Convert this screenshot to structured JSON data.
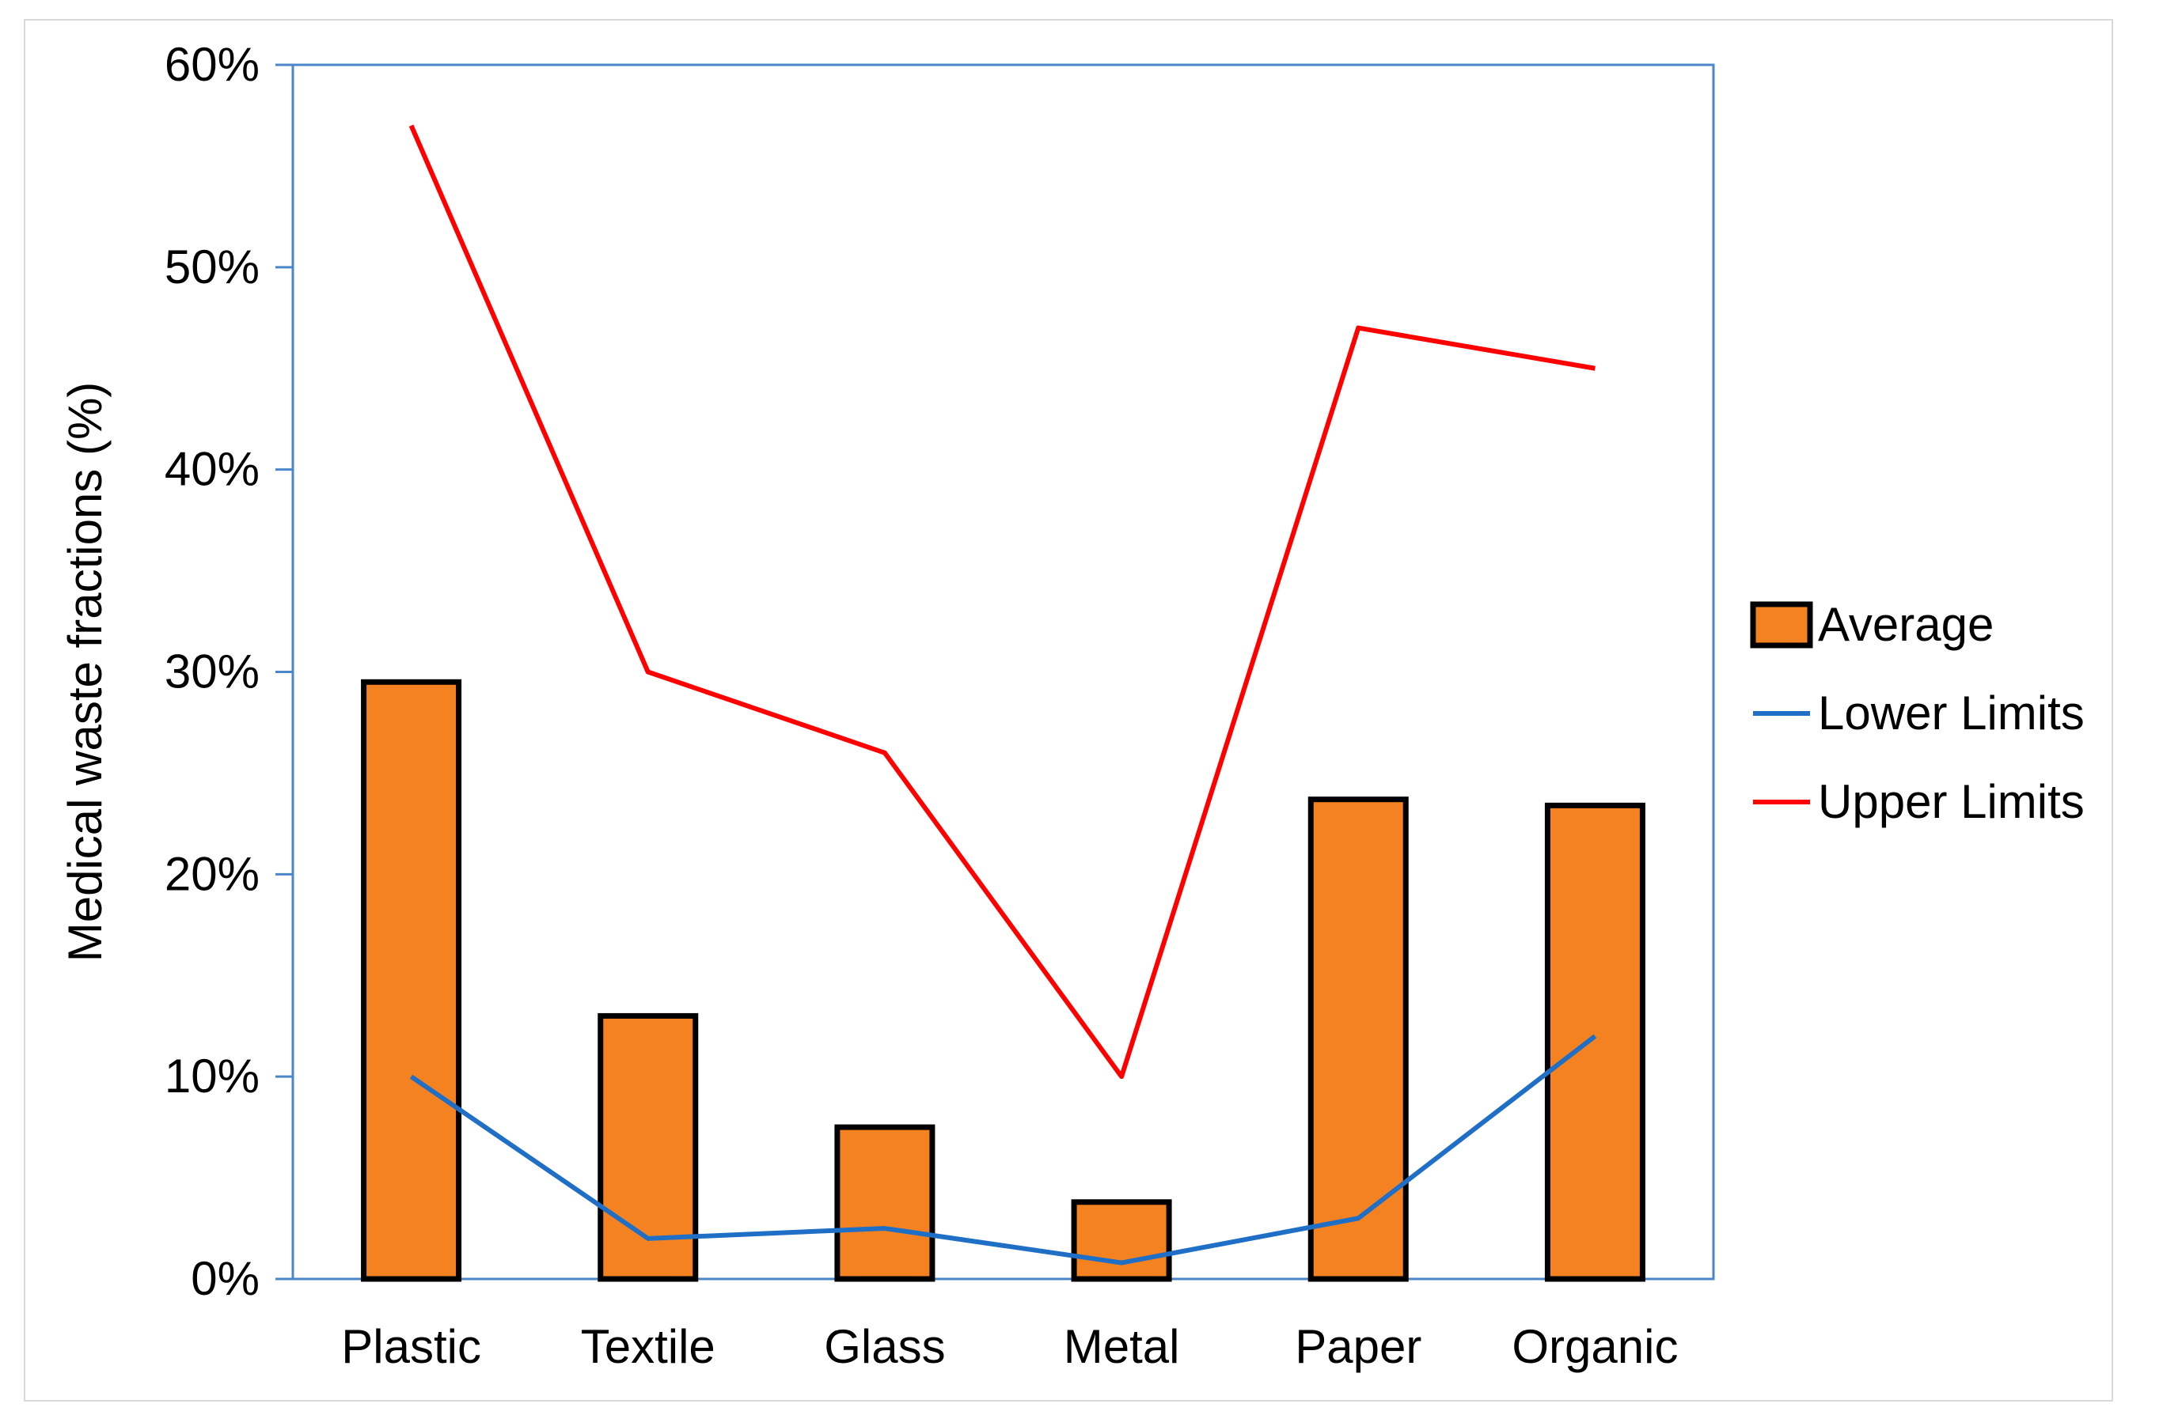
{
  "chart_data": {
    "type": "bar",
    "title": "",
    "xlabel": "",
    "ylabel": "Medical waste fractions  (%)",
    "categories": [
      "Plastic",
      "Textile",
      "Glass",
      "Metal",
      "Paper",
      "Organic"
    ],
    "ylim": [
      0,
      60
    ],
    "yticks": [
      0,
      10,
      20,
      30,
      40,
      50,
      60
    ],
    "ytick_labels": [
      "0%",
      "10%",
      "20%",
      "30%",
      "40%",
      "50%",
      "60%"
    ],
    "grid": false,
    "legend_position": "right",
    "series": [
      {
        "name": "Average",
        "kind": "bar",
        "color": "#f58220",
        "edge_color": "#000000",
        "values": [
          29.5,
          13.0,
          7.5,
          3.8,
          23.7,
          23.4
        ]
      },
      {
        "name": "Lower Limits",
        "kind": "line",
        "color": "#1f6fc6",
        "values": [
          10.0,
          2.0,
          2.5,
          0.8,
          3.0,
          12.0
        ]
      },
      {
        "name": "Upper Limits",
        "kind": "line",
        "color": "#ff0000",
        "values": [
          57.0,
          30.0,
          26.0,
          10.0,
          47.0,
          45.0
        ]
      }
    ],
    "plot_area_border_color": "#4a86c8"
  }
}
